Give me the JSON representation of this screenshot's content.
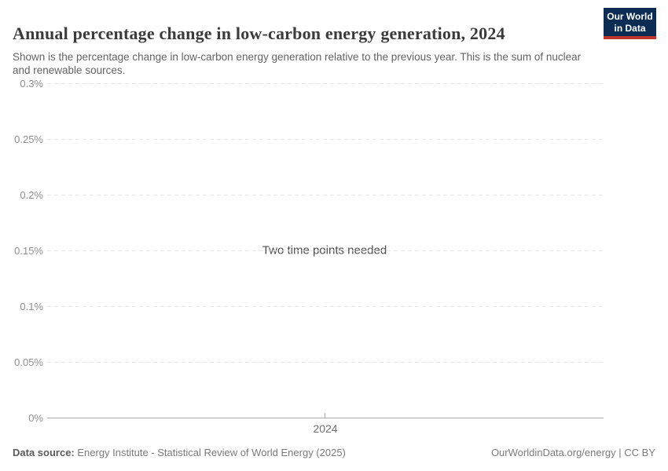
{
  "header": {
    "title": "Annual percentage change in low-carbon energy generation, 2024",
    "subtitle": "Shown is the percentage change in low-carbon energy generation relative to the previous year. This is the sum of nuclear and renewable sources."
  },
  "logo": {
    "line1": "Our World",
    "line2": "in Data",
    "bg_color": "#0d2c53",
    "accent_color": "#c0362c"
  },
  "chart_data": {
    "type": "line",
    "title": "Annual percentage change in low-carbon energy generation, 2024",
    "series": [],
    "message": "Two time points needed",
    "x_ticks": [
      "2024"
    ],
    "y_ticks": [
      "0.3%",
      "0.25%",
      "0.2%",
      "0.15%",
      "0.1%",
      "0.05%",
      "0%"
    ],
    "ylim": [
      0,
      0.3
    ],
    "ylabel": "",
    "xlabel": "",
    "grid": "horizontal-dashed",
    "legend": "none"
  },
  "footer": {
    "source_label": "Data source:",
    "source_text": " Energy Institute - Statistical Review of World Energy (2025)",
    "credit": "OurWorldinData.org/energy | CC BY"
  }
}
